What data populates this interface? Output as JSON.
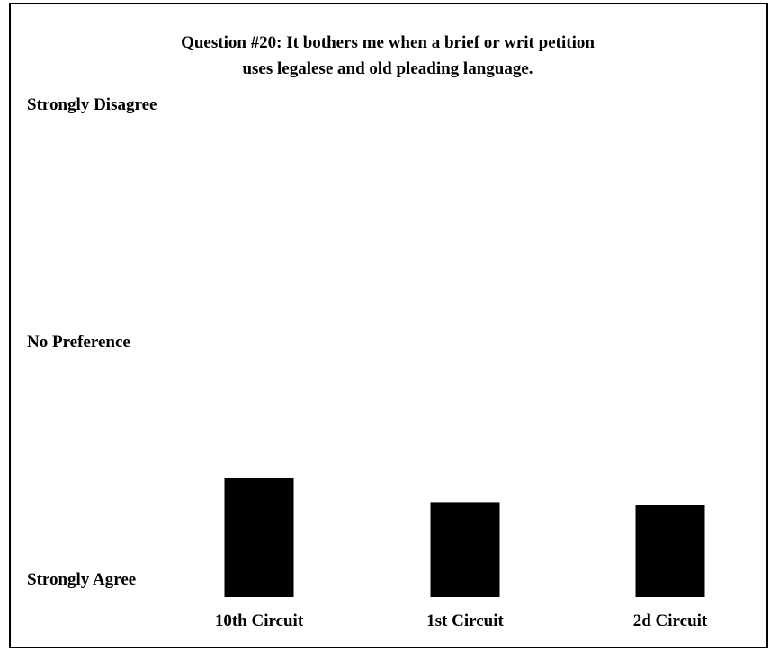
{
  "chart_data": {
    "type": "bar",
    "title_lines": [
      "Question #20: It bothers me when a brief or writ petition",
      "uses legalese and old pleading language."
    ],
    "categories": [
      "10th Circuit",
      "1st Circuit",
      "2d Circuit"
    ],
    "values": [
      1.5,
      1.2,
      1.17
    ],
    "ylim": [
      0,
      6
    ],
    "y_tick_labels": [
      {
        "value": 6,
        "label": "Strongly Disagree"
      },
      {
        "value": 3,
        "label": "No Preference"
      },
      {
        "value": 0,
        "label": "Strongly Agree"
      }
    ],
    "grid": false,
    "legend": "none",
    "bar_color": "#000000"
  }
}
